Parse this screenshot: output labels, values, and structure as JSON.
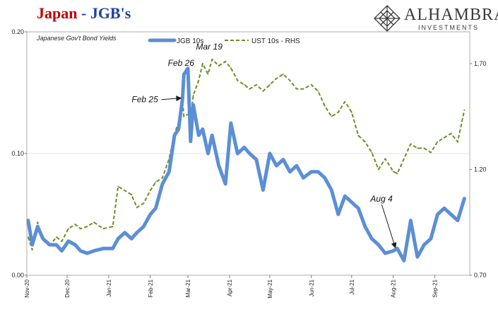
{
  "header": {
    "title_main": "Japan",
    "title_sep": " - ",
    "title_sub": "JGB's"
  },
  "logo": {
    "brand": "ALHAMBRA",
    "subtitle": "INVESTMENTS",
    "icon": "diamond-lattice-icon"
  },
  "colors": {
    "jgb": "#5b8fd6",
    "ust": "#6b8e23",
    "title_red": "#c00000",
    "title_blue": "#1f3f9f"
  },
  "chart_data": {
    "type": "line",
    "title": "Japan - JGB's",
    "subtitle": "Japanese Gov't Bond Yields",
    "legend_placement": "top-center",
    "x": [
      "2020-11-02",
      "2020-11-05",
      "2020-11-09",
      "2020-11-13",
      "2020-11-18",
      "2020-11-23",
      "2020-11-27",
      "2020-12-02",
      "2020-12-07",
      "2020-12-11",
      "2020-12-16",
      "2020-12-21",
      "2020-12-28",
      "2021-01-04",
      "2021-01-08",
      "2021-01-13",
      "2021-01-18",
      "2021-01-22",
      "2021-01-27",
      "2021-02-01",
      "2021-02-05",
      "2021-02-10",
      "2021-02-15",
      "2021-02-19",
      "2021-02-22",
      "2021-02-25",
      "2021-02-26",
      "2021-03-01",
      "2021-03-03",
      "2021-03-05",
      "2021-03-09",
      "2021-03-12",
      "2021-03-16",
      "2021-03-19",
      "2021-03-24",
      "2021-03-29",
      "2021-04-02",
      "2021-04-07",
      "2021-04-12",
      "2021-04-16",
      "2021-04-21",
      "2021-04-26",
      "2021-05-01",
      "2021-05-06",
      "2021-05-11",
      "2021-05-16",
      "2021-05-21",
      "2021-05-26",
      "2021-06-01",
      "2021-06-06",
      "2021-06-11",
      "2021-06-16",
      "2021-06-21",
      "2021-06-26",
      "2021-07-01",
      "2021-07-06",
      "2021-07-11",
      "2021-07-16",
      "2021-07-21",
      "2021-07-26",
      "2021-08-01",
      "2021-08-04",
      "2021-08-09",
      "2021-08-14",
      "2021-08-19",
      "2021-08-24",
      "2021-08-29",
      "2021-09-03",
      "2021-09-08",
      "2021-09-13",
      "2021-09-18",
      "2021-09-23"
    ],
    "xlim": [
      "2020-11-01",
      "2021-09-27"
    ],
    "x_ticks": [
      "Nov-20",
      "Dec-20",
      "Jan-21",
      "Feb-21",
      "Mar-21",
      "Apr-21",
      "May-21",
      "Jun-21",
      "Jul-21",
      "Aug-21",
      "Sep-21"
    ],
    "x_tick_dates": [
      "2020-11-01",
      "2020-12-01",
      "2021-01-01",
      "2021-02-01",
      "2021-03-01",
      "2021-04-01",
      "2021-05-01",
      "2021-06-01",
      "2021-07-01",
      "2021-08-01",
      "2021-09-01"
    ],
    "y_left": {
      "ylim": [
        0.0,
        0.2
      ],
      "ticks": [
        "0.00",
        "0.10",
        "0.20"
      ],
      "tick_values": [
        0.0,
        0.1,
        0.2
      ]
    },
    "y_right": {
      "ylim": [
        0.7,
        1.85
      ],
      "ticks": [
        "0.70",
        "1.20",
        "1.70"
      ],
      "tick_values": [
        0.7,
        1.2,
        1.7
      ]
    },
    "series": [
      {
        "name": "JGB 10s",
        "axis": "left",
        "style": "solid",
        "values": [
          0.045,
          0.025,
          0.04,
          0.03,
          0.025,
          0.025,
          0.02,
          0.028,
          0.025,
          0.02,
          0.018,
          0.02,
          0.022,
          0.022,
          0.03,
          0.035,
          0.03,
          0.035,
          0.04,
          0.05,
          0.055,
          0.075,
          0.085,
          0.115,
          0.12,
          0.145,
          0.165,
          0.17,
          0.11,
          0.14,
          0.115,
          0.12,
          0.1,
          0.115,
          0.09,
          0.075,
          0.125,
          0.1,
          0.105,
          0.1,
          0.095,
          0.07,
          0.1,
          0.09,
          0.095,
          0.085,
          0.09,
          0.08,
          0.085,
          0.085,
          0.08,
          0.07,
          0.05,
          0.065,
          0.06,
          0.055,
          0.04,
          0.03,
          0.025,
          0.018,
          0.02,
          0.022,
          0.012,
          0.045,
          0.015,
          0.025,
          0.03,
          0.05,
          0.055,
          0.05,
          0.045,
          0.063
        ]
      },
      {
        "name": "UST 10s - RHS",
        "axis": "right",
        "style": "dashed",
        "values": [
          0.88,
          0.82,
          0.95,
          0.87,
          0.84,
          0.88,
          0.86,
          0.92,
          0.94,
          0.92,
          0.93,
          0.95,
          0.92,
          0.93,
          1.12,
          1.1,
          1.08,
          1.02,
          1.04,
          1.1,
          1.14,
          1.16,
          1.25,
          1.37,
          1.42,
          1.53,
          1.45,
          1.46,
          1.45,
          1.55,
          1.62,
          1.7,
          1.65,
          1.72,
          1.69,
          1.71,
          1.68,
          1.62,
          1.6,
          1.58,
          1.6,
          1.57,
          1.6,
          1.63,
          1.65,
          1.62,
          1.58,
          1.58,
          1.6,
          1.57,
          1.5,
          1.45,
          1.47,
          1.52,
          1.47,
          1.36,
          1.33,
          1.28,
          1.2,
          1.25,
          1.19,
          1.18,
          1.25,
          1.32,
          1.3,
          1.3,
          1.28,
          1.33,
          1.35,
          1.37,
          1.33,
          1.48
        ]
      }
    ],
    "annotations": [
      {
        "text": "Feb 26",
        "x": "2021-02-26",
        "y": 0.165,
        "axis": "left",
        "arrow": false
      },
      {
        "text": "Mar 19",
        "x": "2021-03-19",
        "y": 1.72,
        "axis": "right",
        "arrow": false
      },
      {
        "text": "Feb 25",
        "x": "2021-02-25",
        "y": 1.53,
        "axis": "right",
        "arrow": true
      },
      {
        "text": "Aug 4",
        "x": "2021-08-04",
        "y": 0.022,
        "axis": "left",
        "arrow": true
      }
    ]
  }
}
